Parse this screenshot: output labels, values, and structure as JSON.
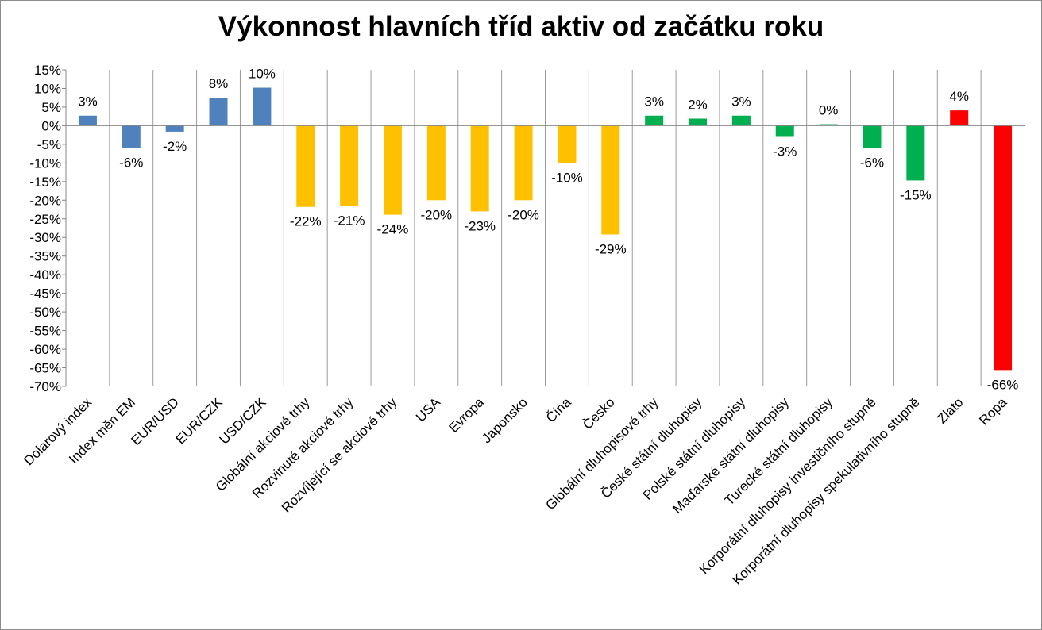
{
  "chart_data": {
    "type": "bar",
    "title": "Výkonnost hlavních tříd aktiv od začátku roku",
    "xlabel": "",
    "ylabel": "",
    "ylim": [
      -70,
      15
    ],
    "yticks": [
      15,
      10,
      5,
      0,
      -5,
      -10,
      -15,
      -20,
      -25,
      -30,
      -35,
      -40,
      -45,
      -50,
      -55,
      -60,
      -65,
      -70
    ],
    "ytick_labels": [
      "15%",
      "10%",
      "5%",
      "0%",
      "-5%",
      "-10%",
      "-15%",
      "-20%",
      "-25%",
      "-30%",
      "-35%",
      "-40%",
      "-45%",
      "-50%",
      "-55%",
      "-60%",
      "-65%",
      "-70%"
    ],
    "grid": "vertical category separators",
    "legend": "none",
    "categories": [
      "Dolarový index",
      "Index měn EM",
      "EUR/USD",
      "EUR/CZK",
      "USD/CZK",
      "Globální akciové trhy",
      "Rozvinuté akciové trhy",
      "Rozvíjející se akciové trhy",
      "USA",
      "Evropa",
      "Japonsko",
      "Čína",
      "Česko",
      "Globální dluhopisové trhy",
      "České státní dluhopisy",
      "Polské státní dluhopisy",
      "Maďarské státní dluhopisy",
      "Turecké státní dluhopisy",
      "Korporátní dluhopisy investičního stupně",
      "Korporátní dluhopisy spekulativního stupně",
      "Zlato",
      "Ropa"
    ],
    "values": [
      2.7,
      -6.0,
      -1.6,
      7.5,
      10.2,
      -21.8,
      -21.5,
      -23.9,
      -20.0,
      -23.0,
      -20.0,
      -10.0,
      -29.2,
      2.7,
      1.9,
      2.7,
      -3.0,
      0.4,
      -6.0,
      -14.7,
      4.1,
      -65.6
    ],
    "data_labels": [
      "3%",
      "-6%",
      "-2%",
      "8%",
      "10%",
      "-22%",
      "-21%",
      "-24%",
      "-20%",
      "-23%",
      "-20%",
      "-10%",
      "-29%",
      "3%",
      "2%",
      "3%",
      "-3%",
      "0%",
      "-6%",
      "-15%",
      "4%",
      "-66%"
    ],
    "colors": [
      "#4f81bd",
      "#4f81bd",
      "#4f81bd",
      "#4f81bd",
      "#4f81bd",
      "#ffc000",
      "#ffc000",
      "#ffc000",
      "#ffc000",
      "#ffc000",
      "#ffc000",
      "#ffc000",
      "#ffc000",
      "#00b050",
      "#00b050",
      "#00b050",
      "#00b050",
      "#00b050",
      "#00b050",
      "#00b050",
      "#ff0000",
      "#ff0000"
    ]
  }
}
